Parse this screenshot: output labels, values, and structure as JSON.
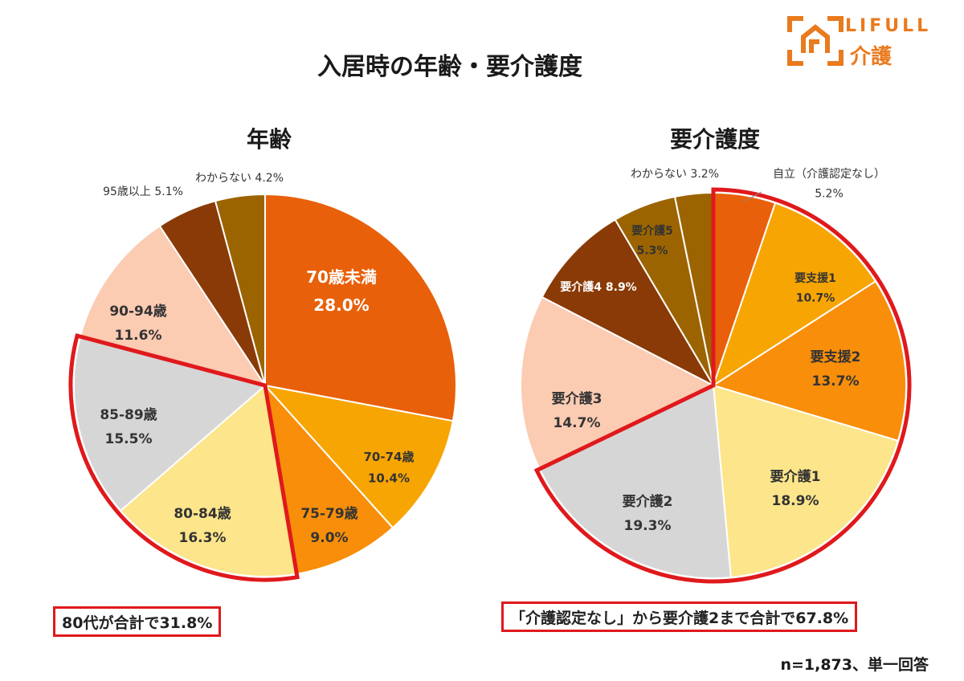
{
  "header": {
    "title": "入居時の年齢・要介護度"
  },
  "logo": {
    "brand": "LIFULL",
    "sub": "介護",
    "accent": "#ea7a1e"
  },
  "chart_data": [
    {
      "type": "pie",
      "title": "年齢",
      "start": "top, clockwise",
      "slices": [
        {
          "label": "70歳未満",
          "value": 28.0,
          "display": "28.0%",
          "color": "#e8600a",
          "text_color": "#ffffff"
        },
        {
          "label": "70-74歳",
          "value": 10.4,
          "display": "10.4%",
          "color": "#f7a503",
          "text_color": "#333333"
        },
        {
          "label": "75-79歳",
          "value": 9.0,
          "display": "9.0%",
          "color": "#f88e0a",
          "text_color": "#333333"
        },
        {
          "label": "80-84歳",
          "value": 16.3,
          "display": "16.3%",
          "color": "#fce58a",
          "text_color": "#333333"
        },
        {
          "label": "85-89歳",
          "value": 15.5,
          "display": "15.5%",
          "color": "#d6d6d6",
          "text_color": "#333333"
        },
        {
          "label": "90-94歳",
          "value": 11.6,
          "display": "11.6%",
          "color": "#fbcbb2",
          "text_color": "#333333"
        },
        {
          "label": "95歳以上",
          "value": 5.1,
          "display": "5.1%",
          "color": "#8a3a06",
          "text_color": "#333333",
          "outside": true
        },
        {
          "label": "わからない",
          "value": 4.2,
          "display": "4.2%",
          "color": "#9c6400",
          "text_color": "#333333",
          "outside": true
        }
      ],
      "highlight": {
        "from": 3,
        "to": 4,
        "color": "#e0191c"
      },
      "note": "80代が合計で31.8%"
    },
    {
      "type": "pie",
      "title": "要介護度",
      "start": "top, clockwise",
      "slices": [
        {
          "label": "自立（介護認定なし）",
          "value": 5.2,
          "display": "5.2%",
          "color": "#e8600a",
          "text_color": "#333333",
          "outside": true
        },
        {
          "label": "要支援1",
          "value": 10.7,
          "display": "10.7%",
          "color": "#f7a503",
          "text_color": "#333333"
        },
        {
          "label": "要支援2",
          "value": 13.7,
          "display": "13.7%",
          "color": "#f88e0a",
          "text_color": "#333333"
        },
        {
          "label": "要介護1",
          "value": 18.9,
          "display": "18.9%",
          "color": "#fce58a",
          "text_color": "#333333"
        },
        {
          "label": "要介護2",
          "value": 19.3,
          "display": "19.3%",
          "color": "#d6d6d6",
          "text_color": "#333333"
        },
        {
          "label": "要介護3",
          "value": 14.7,
          "display": "14.7%",
          "color": "#fbcbb2",
          "text_color": "#333333"
        },
        {
          "label": "要介護4",
          "value": 8.9,
          "display": "8.9%",
          "color": "#8a3a06",
          "text_color": "#ffffff"
        },
        {
          "label": "要介護5",
          "value": 5.3,
          "display": "5.3%",
          "color": "#9c6400",
          "text_color": "#333333"
        },
        {
          "label": "わからない",
          "value": 3.2,
          "display": "3.2%",
          "color": "#9c6400",
          "text_color": "#333333",
          "outside": true
        }
      ],
      "highlight": {
        "from": 0,
        "to": 4,
        "color": "#e0191c"
      },
      "note": "「介護認定なし」から要介護2まで合計で67.8%"
    }
  ],
  "footer": {
    "note": "n=1,873、単一回答"
  }
}
